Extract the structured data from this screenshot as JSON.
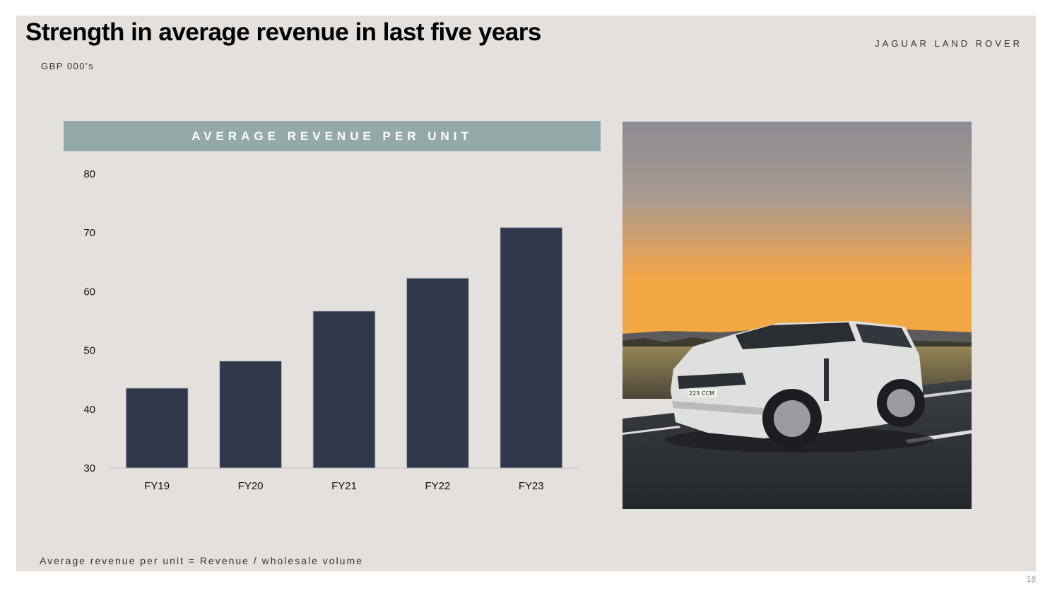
{
  "slide": {
    "title": "Strength in average revenue in last five years",
    "subtitle": "GBP 000’s",
    "brand": "JAGUAR LAND ROVER",
    "chart_header": "AVERAGE REVENUE PER UNIT",
    "footnote": "Average revenue per unit = Revenue / wholesale volume",
    "page_number": "18",
    "photo": {
      "plate_text": "223 CCM"
    }
  },
  "colors": {
    "bar": "#2f394b",
    "header": "#93aaa8",
    "background": "#e4e0dd"
  },
  "chart_data": {
    "type": "bar",
    "categories": [
      "FY19",
      "FY20",
      "FY21",
      "FY22",
      "FY23"
    ],
    "values": [
      43.6,
      48.2,
      56.7,
      62.3,
      70.9
    ],
    "ylim": [
      30,
      80
    ],
    "yticks": [
      30,
      40,
      50,
      60,
      70,
      80
    ],
    "title": "AVERAGE REVENUE PER UNIT",
    "xlabel": "",
    "ylabel": "",
    "grid": false
  }
}
